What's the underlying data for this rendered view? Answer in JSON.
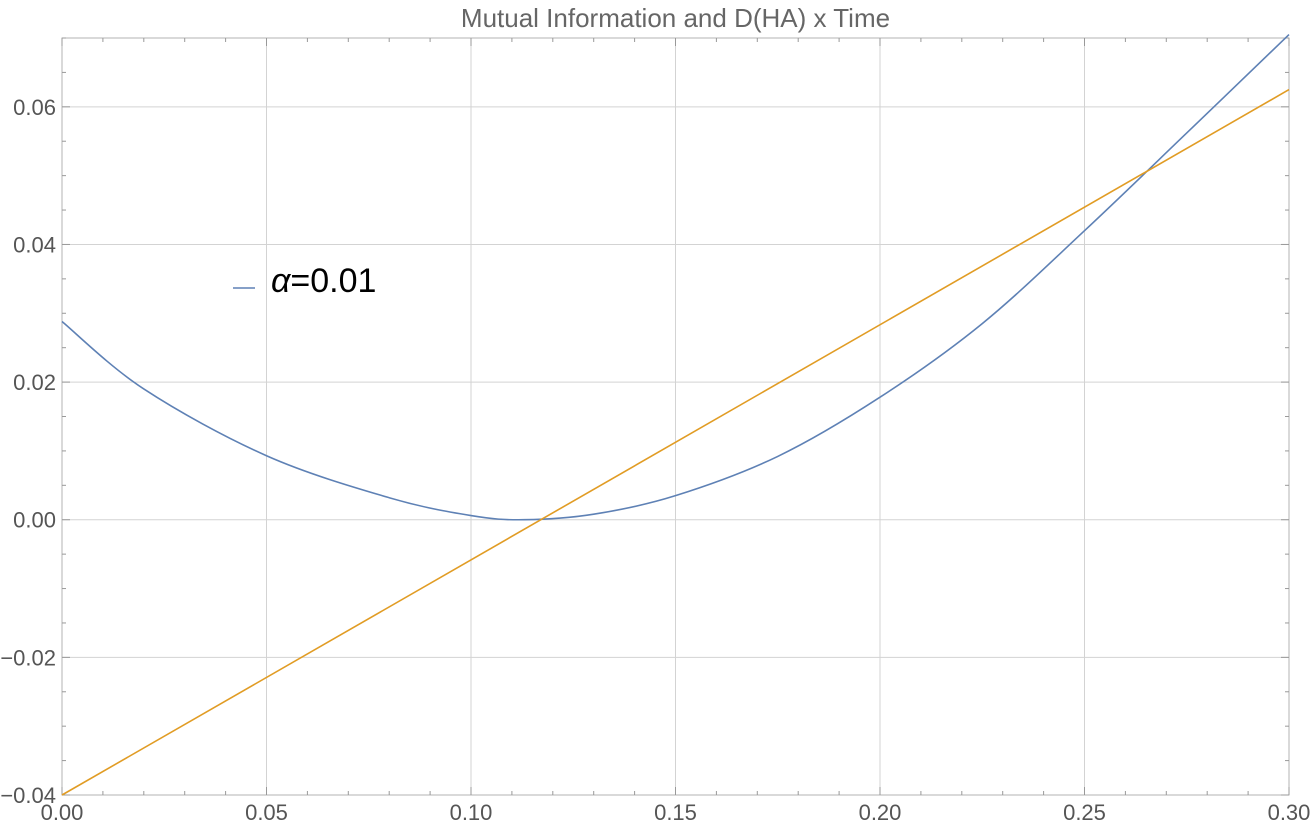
{
  "colors": {
    "series_blue": "#5E81B5",
    "series_orange": "#E19C24",
    "grid": "#D3D3D3",
    "frame": "#B3B3B3",
    "title": "#666666",
    "tick": "#555555"
  },
  "chart_data": {
    "type": "line",
    "title": "Mutual Information and D(HA) x Time",
    "xlabel": "",
    "ylabel": "",
    "xlim": [
      0.0,
      0.3
    ],
    "ylim": [
      -0.04,
      0.07
    ],
    "grid": true,
    "legend_placement": "upper-left inside plot",
    "x_ticks": [
      0.0,
      0.05,
      0.1,
      0.15,
      0.2,
      0.25,
      0.3
    ],
    "x_tick_labels": [
      "0.00",
      "0.05",
      "0.10",
      "0.15",
      "0.20",
      "0.25",
      "0.30"
    ],
    "y_ticks": [
      -0.04,
      -0.02,
      0.0,
      0.02,
      0.04,
      0.06
    ],
    "y_tick_labels": [
      "−0.04",
      "−0.02",
      "0.00",
      "0.02",
      "0.04",
      "0.06"
    ],
    "legend": {
      "symbol": "α",
      "text": "=0.01"
    },
    "series": [
      {
        "color": "#5E81B5",
        "x": [
          0.0,
          0.02,
          0.05,
          0.08,
          0.1,
          0.113,
          0.13,
          0.15,
          0.175,
          0.2,
          0.225,
          0.25,
          0.275,
          0.3
        ],
        "y": [
          0.0288,
          0.019,
          0.0093,
          0.0032,
          0.0006,
          0.0,
          0.0008,
          0.0035,
          0.0092,
          0.0178,
          0.0285,
          0.042,
          0.0562,
          0.0705
        ]
      },
      {
        "color": "#E19C24",
        "x": [
          0.0,
          0.3
        ],
        "y": [
          -0.04,
          0.0625
        ]
      }
    ]
  }
}
